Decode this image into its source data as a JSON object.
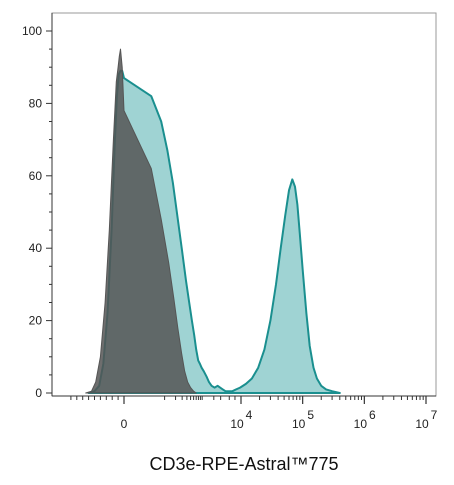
{
  "chart_data": {
    "type": "area",
    "title": "",
    "xlabel": "CD3e-RPE-Astral™775",
    "ylabel": "",
    "x_scale": "biexponential",
    "xlim": [
      -1000,
      10000000
    ],
    "ylim": [
      0,
      100
    ],
    "grid": false,
    "legend": "none",
    "y_ticks": [
      {
        "value": 0,
        "label": "0"
      },
      {
        "value": 20,
        "label": "20"
      },
      {
        "value": 40,
        "label": "40"
      },
      {
        "value": 60,
        "label": "60"
      },
      {
        "value": 80,
        "label": "80"
      },
      {
        "value": 100,
        "label": "100"
      }
    ],
    "x_ticks": [
      {
        "value": 0,
        "label": "0",
        "exp": ""
      },
      {
        "value": 10000,
        "label": "10",
        "exp": "4"
      },
      {
        "value": 100000,
        "label": "10",
        "exp": "5"
      },
      {
        "value": 1000000,
        "label": "10",
        "exp": "6"
      },
      {
        "value": 10000000,
        "label": "10",
        "exp": "7"
      }
    ],
    "series": [
      {
        "name": "",
        "color": "#555555",
        "fill": "#555555",
        "points": [
          [
            -650,
            0
          ],
          [
            -550,
            0.5
          ],
          [
            -480,
            3
          ],
          [
            -400,
            10
          ],
          [
            -320,
            25
          ],
          [
            -250,
            45
          ],
          [
            -180,
            70
          ],
          [
            -130,
            86
          ],
          [
            -100,
            90
          ],
          [
            -80,
            93
          ],
          [
            -60,
            95
          ],
          [
            -30,
            90
          ],
          [
            0,
            78
          ],
          [
            40,
            62
          ],
          [
            80,
            48
          ],
          [
            130,
            36
          ],
          [
            180,
            26
          ],
          [
            230,
            18
          ],
          [
            290,
            11
          ],
          [
            350,
            6
          ],
          [
            420,
            3
          ],
          [
            500,
            1.5
          ],
          [
            600,
            0.5
          ],
          [
            700,
            0
          ]
        ]
      },
      {
        "name": "",
        "color": "#1a8f8f",
        "fill": "#7fc4c4",
        "points": [
          [
            -600,
            0
          ],
          [
            -500,
            0.5
          ],
          [
            -420,
            2
          ],
          [
            -350,
            8
          ],
          [
            -280,
            22
          ],
          [
            -210,
            45
          ],
          [
            -160,
            68
          ],
          [
            -120,
            82
          ],
          [
            -90,
            88
          ],
          [
            -60,
            89
          ],
          [
            -30,
            89
          ],
          [
            0,
            87
          ],
          [
            40,
            82
          ],
          [
            80,
            75
          ],
          [
            120,
            67
          ],
          [
            170,
            58
          ],
          [
            230,
            48
          ],
          [
            300,
            39
          ],
          [
            380,
            31
          ],
          [
            460,
            25
          ],
          [
            540,
            20
          ],
          [
            620,
            16
          ],
          [
            700,
            12
          ],
          [
            790,
            9
          ],
          [
            880,
            8
          ],
          [
            970,
            7
          ],
          [
            1100,
            6
          ],
          [
            1300,
            4.5
          ],
          [
            1500,
            3
          ],
          [
            1750,
            2
          ],
          [
            2100,
            1.5
          ],
          [
            2500,
            2
          ],
          [
            2900,
            1.5
          ],
          [
            3400,
            1
          ],
          [
            4000,
            0.5
          ],
          [
            5000,
            0.5
          ],
          [
            6000,
            0.5
          ],
          [
            7500,
            1
          ],
          [
            9500,
            1.5
          ],
          [
            12000,
            2.5
          ],
          [
            15000,
            4
          ],
          [
            19000,
            7
          ],
          [
            24000,
            12
          ],
          [
            30000,
            20
          ],
          [
            37000,
            30
          ],
          [
            44000,
            40
          ],
          [
            52000,
            49
          ],
          [
            60000,
            56
          ],
          [
            68000,
            59
          ],
          [
            75000,
            57
          ],
          [
            82000,
            52
          ],
          [
            90000,
            44
          ],
          [
            100000,
            34
          ],
          [
            115000,
            22
          ],
          [
            130000,
            13
          ],
          [
            150000,
            7
          ],
          [
            170000,
            4
          ],
          [
            200000,
            2
          ],
          [
            240000,
            1
          ],
          [
            300000,
            0.5
          ],
          [
            400000,
            0
          ]
        ]
      }
    ]
  }
}
